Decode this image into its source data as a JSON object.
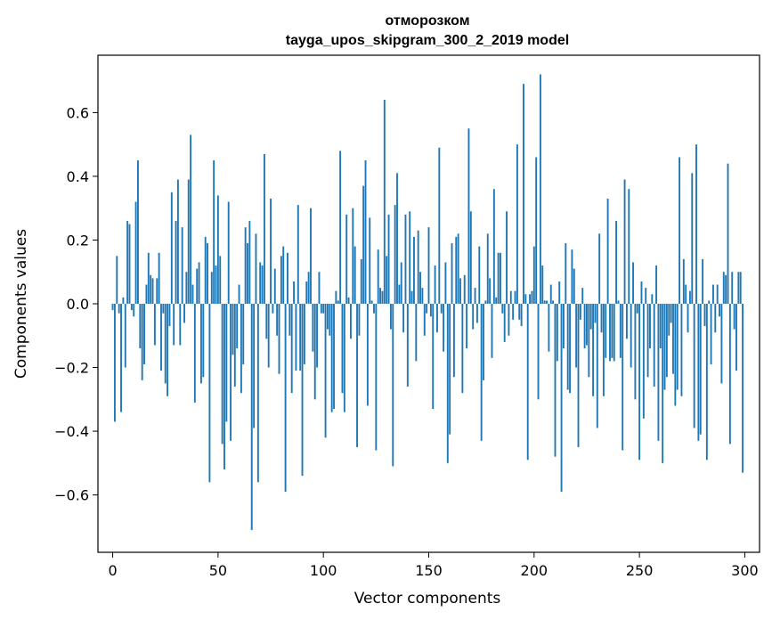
{
  "chart_data": {
    "type": "bar",
    "title_line1": "отморозком",
    "title_line2": "tayga_upos_skipgram_300_2_2019 model",
    "xlabel": "Vector components",
    "ylabel": "Components values",
    "xlim": [
      -7,
      307
    ],
    "ylim": [
      -0.78,
      0.78
    ],
    "xticks": [
      0,
      50,
      100,
      150,
      200,
      250,
      300
    ],
    "xtick_labels": [
      "0",
      "50",
      "100",
      "150",
      "200",
      "250",
      "300"
    ],
    "yticks": [
      -0.6,
      -0.4,
      -0.2,
      0.0,
      0.2,
      0.4,
      0.6
    ],
    "ytick_labels": [
      "−0.6",
      "−0.4",
      "−0.2",
      "0.0",
      "0.2",
      "0.4",
      "0.6"
    ],
    "bar_color": "#1f77b4",
    "values": [
      -0.02,
      -0.37,
      0.15,
      -0.03,
      -0.34,
      0.02,
      -0.2,
      0.26,
      0.25,
      -0.02,
      -0.04,
      0.32,
      0.45,
      -0.14,
      -0.24,
      -0.19,
      0.06,
      0.16,
      0.09,
      0.08,
      -0.13,
      0.08,
      0.16,
      -0.21,
      -0.03,
      -0.25,
      -0.29,
      -0.07,
      0.35,
      -0.13,
      0.26,
      0.39,
      -0.13,
      0.24,
      -0.06,
      0.1,
      0.39,
      0.53,
      0.06,
      -0.31,
      0.11,
      0.13,
      -0.25,
      -0.23,
      0.21,
      0.19,
      -0.56,
      0.1,
      0.45,
      0.12,
      0.34,
      0.15,
      -0.44,
      -0.52,
      -0.37,
      0.32,
      -0.43,
      -0.16,
      -0.26,
      -0.14,
      0.06,
      -0.28,
      -0.19,
      0.24,
      0.19,
      0.26,
      -0.71,
      -0.39,
      0.22,
      -0.56,
      0.13,
      0.12,
      0.47,
      -0.11,
      -0.2,
      0.33,
      -0.03,
      0.11,
      -0.1,
      -0.22,
      0.15,
      0.18,
      -0.59,
      0.16,
      -0.1,
      -0.28,
      0.07,
      -0.21,
      0.31,
      -0.21,
      -0.54,
      -0.19,
      0.07,
      0.1,
      0.3,
      -0.15,
      -0.3,
      -0.2,
      0.1,
      -0.03,
      -0.03,
      -0.42,
      -0.08,
      -0.1,
      -0.34,
      -0.33,
      0.04,
      0.01,
      0.48,
      -0.28,
      -0.34,
      0.28,
      0.02,
      -0.11,
      0.3,
      0.18,
      -0.45,
      -0.1,
      0.14,
      0.37,
      0.45,
      -0.32,
      0.27,
      0.01,
      -0.03,
      -0.46,
      0.17,
      0.05,
      0.04,
      0.64,
      0.15,
      0.28,
      -0.08,
      -0.51,
      0.31,
      0.41,
      0.06,
      0.13,
      -0.09,
      0.28,
      -0.26,
      0.29,
      0.04,
      0.21,
      -0.18,
      0.23,
      0.1,
      0.05,
      -0.1,
      -0.03,
      0.24,
      -0.04,
      -0.33,
      0.12,
      -0.09,
      0.49,
      -0.03,
      -0.15,
      0.13,
      -0.5,
      -0.41,
      0.19,
      -0.23,
      0.21,
      0.22,
      0.08,
      -0.28,
      0.09,
      -0.14,
      0.55,
      0.29,
      -0.08,
      0.05,
      -0.06,
      0.18,
      -0.43,
      -0.24,
      0.01,
      0.22,
      0.08,
      -0.17,
      0.36,
      0.02,
      0.16,
      0.16,
      -0.03,
      -0.12,
      0.29,
      -0.1,
      0.04,
      -0.05,
      0.04,
      0.5,
      -0.05,
      -0.07,
      0.69,
      0.03,
      -0.49,
      0.03,
      0.04,
      0.18,
      0.46,
      -0.3,
      0.72,
      0.12,
      0.01,
      0.01,
      -0.15,
      0.06,
      0.01,
      -0.48,
      -0.18,
      0.07,
      -0.59,
      -0.14,
      0.19,
      -0.27,
      -0.28,
      0.17,
      0.11,
      -0.2,
      -0.45,
      -0.05,
      0.05,
      -0.14,
      -0.13,
      -0.23,
      -0.08,
      -0.29,
      -0.06,
      -0.39,
      0.22,
      -0.09,
      -0.29,
      -0.17,
      0.33,
      -0.18,
      -0.17,
      -0.18,
      0.26,
      0.01,
      -0.17,
      -0.46,
      0.39,
      -0.11,
      0.36,
      -0.2,
      0.13,
      -0.3,
      -0.03,
      -0.49,
      0.07,
      -0.36,
      0.05,
      -0.23,
      -0.14,
      0.03,
      -0.26,
      0.12,
      -0.43,
      -0.14,
      -0.5,
      -0.27,
      -0.23,
      -0.1,
      -0.06,
      -0.22,
      -0.32,
      -0.27,
      0.46,
      -0.29,
      0.14,
      0.06,
      -0.09,
      0.04,
      0.41,
      -0.39,
      0.5,
      -0.43,
      -0.41,
      0.14,
      -0.07,
      -0.49,
      0.01,
      -0.19,
      0.06,
      -0.09,
      0.06,
      -0.04,
      -0.25,
      0.1,
      0.09,
      0.44,
      -0.44,
      0.1,
      -0.08,
      -0.21,
      0.1,
      0.1,
      -0.53
    ]
  }
}
